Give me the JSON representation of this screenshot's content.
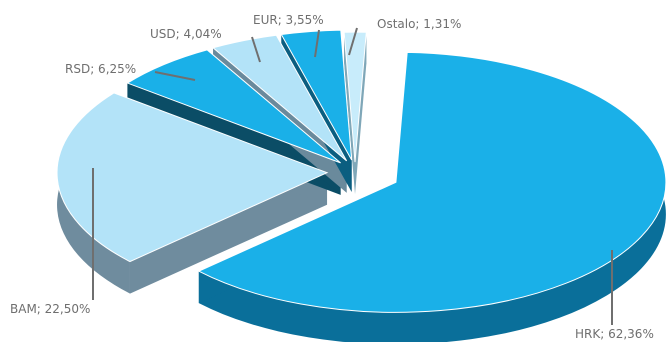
{
  "chart_data": {
    "type": "pie",
    "style": "3d-exploded",
    "slices": [
      {
        "name": "HRK",
        "value": 62.36,
        "label": "HRK; 62,36%",
        "top": "#1ab0e8",
        "side": "#0a6f9a"
      },
      {
        "name": "BAM",
        "value": 22.5,
        "label": "BAM; 22,50%",
        "top": "#b3e3f8",
        "side": "#6f8c9e"
      },
      {
        "name": "RSD",
        "value": 6.25,
        "label": "RSD; 6,25%",
        "top": "#1ab0e8",
        "side": "#0b4d66"
      },
      {
        "name": "USD",
        "value": 4.04,
        "label": "USD; 4,04%",
        "top": "#b3e3f8",
        "side": "#6a8a9c"
      },
      {
        "name": "EUR",
        "value": 3.55,
        "label": "EUR; 3,55%",
        "top": "#1ab0e8",
        "side": "#0b5e80"
      },
      {
        "name": "Ostalo",
        "value": 1.31,
        "label": "Ostalo; 1,31%",
        "top": "#c8ecfb",
        "side": "#7fa7b8"
      }
    ]
  }
}
